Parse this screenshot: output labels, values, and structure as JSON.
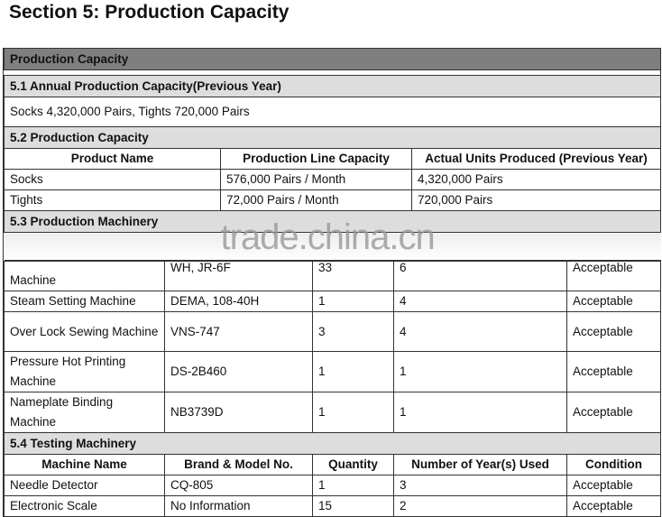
{
  "title": "Section 5: Production Capacity",
  "section_header": "Production Capacity",
  "s51": {
    "title": "5.1 Annual Production Capacity(Previous Year)",
    "text": "Socks 4,320,000 Pairs, Tights 720,000 Pairs"
  },
  "s52": {
    "title": "5.2 Production Capacity",
    "headers": [
      "Product Name",
      "Production Line Capacity",
      "Actual Units Produced (Previous Year)"
    ],
    "rows": [
      [
        "Socks",
        "576,000 Pairs / Month",
        "4,320,000 Pairs"
      ],
      [
        "Tights",
        "72,000 Pairs / Month",
        "720,000 Pairs"
      ]
    ]
  },
  "s53": {
    "title": "5.3 Production Machinery",
    "watermark": "trade.china.cn",
    "rows": [
      [
        "Machine",
        "WH, JR-6F",
        "33",
        "6",
        "Acceptable"
      ],
      [
        "Steam Setting Machine",
        "DEMA, 108-40H",
        "1",
        "4",
        "Acceptable"
      ],
      [
        "Over Lock Sewing Machine",
        "VNS-747",
        "3",
        "4",
        "Acceptable"
      ],
      [
        "Pressure Hot Printing Machine",
        "DS-2B460",
        "1",
        "1",
        "Acceptable"
      ],
      [
        "Nameplate Binding Machine",
        "NB3739D",
        "1",
        "1",
        "Acceptable"
      ]
    ]
  },
  "s54": {
    "title": "5.4 Testing Machinery",
    "headers": [
      "Machine Name",
      "Brand & Model No.",
      "Quantity",
      "Number of Year(s) Used",
      "Condition"
    ],
    "rows": [
      [
        "Needle Detector",
        "CQ-805",
        "1",
        "3",
        "Acceptable"
      ],
      [
        "Electronic Scale",
        "No Information",
        "15",
        "2",
        "Acceptable"
      ]
    ]
  }
}
